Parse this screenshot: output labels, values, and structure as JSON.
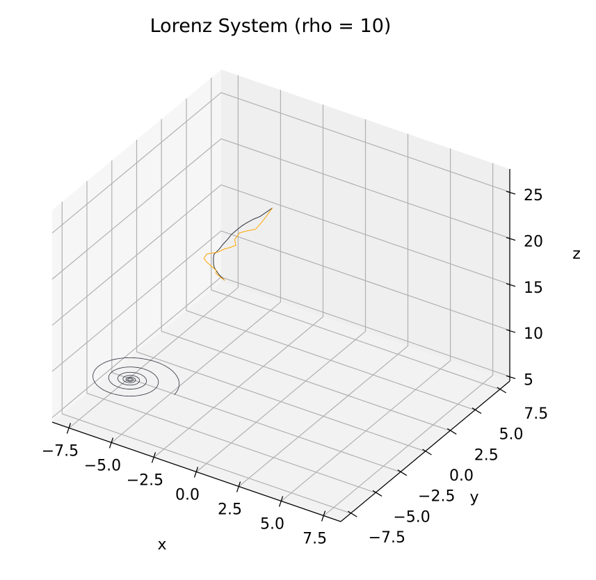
{
  "chart_data": {
    "type": "line",
    "title": "Lorenz System (rho = 10)",
    "xlabel": "x",
    "ylabel": "y",
    "zlabel": "z",
    "xlim": [
      -8.5,
      8.5
    ],
    "ylim": [
      -8.5,
      8.5
    ],
    "zlim": [
      4.5,
      27.5
    ],
    "xticks": [
      -7.5,
      -5.0,
      -2.5,
      0.0,
      2.5,
      5.0,
      7.5
    ],
    "xtick_labels": [
      "−7.5",
      "−5.0",
      "−2.5",
      "0.0",
      "2.5",
      "5.0",
      "7.5"
    ],
    "yticks": [
      -7.5,
      -5.0,
      -2.5,
      0.0,
      2.5,
      5.0,
      7.5
    ],
    "ytick_labels": [
      "−7.5",
      "−5.0",
      "−2.5",
      "0.0",
      "2.5",
      "5.0",
      "7.5"
    ],
    "zticks": [
      5,
      10,
      15,
      20,
      25
    ],
    "ztick_labels": [
      "5",
      "10",
      "15",
      "20",
      "25"
    ],
    "grid": true,
    "colors": {
      "pane": "#f2f2f2",
      "grid": "#b0b0b0",
      "series_dark": "#2b2f3a",
      "series_orange": "#ffa500"
    },
    "series": [
      {
        "color": "#2b2f3a",
        "points": [
          [
            -8.0,
            8.0,
            5.4
          ],
          [
            -8.0,
            7.4,
            6.6
          ],
          [
            -7.9,
            6.8,
            7.9
          ],
          [
            -7.6,
            6.2,
            9.0
          ],
          [
            -7.2,
            5.5,
            10.5
          ],
          [
            -6.7,
            4.7,
            12.0
          ],
          [
            -6.0,
            4.0,
            13.6
          ],
          [
            -5.4,
            3.4,
            15.1
          ],
          [
            -4.8,
            2.8,
            16.5
          ],
          [
            -4.2,
            2.2,
            18.0
          ],
          [
            -3.6,
            1.6,
            19.3
          ],
          [
            -3.0,
            1.1,
            20.6
          ],
          [
            -2.4,
            0.6,
            21.8
          ],
          [
            -1.7,
            0.1,
            23.1
          ],
          [
            -1.0,
            -0.4,
            24.3
          ],
          [
            -0.4,
            -0.8,
            25.5
          ],
          [
            0.2,
            -1.2,
            26.7
          ]
        ],
        "spiral": {
          "center": [
            -6.6,
            -3.9,
            6.2
          ],
          "r0": 2.6,
          "turns": 6,
          "decay": 0.55
        }
      },
      {
        "color": "#ffa500",
        "points": [
          [
            -8.0,
            8.0,
            5.4
          ],
          [
            -8.1,
            7.3,
            6.7
          ],
          [
            -7.8,
            6.8,
            7.7
          ],
          [
            -8.0,
            6.2,
            9.0
          ],
          [
            -7.7,
            5.4,
            10.3
          ],
          [
            -7.3,
            5.0,
            11.4
          ],
          [
            -6.5,
            4.8,
            12.3
          ],
          [
            -5.7,
            4.1,
            13.8
          ],
          [
            -5.0,
            3.2,
            15.1
          ],
          [
            -4.3,
            2.8,
            16.2
          ],
          [
            -3.9,
            2.0,
            17.8
          ],
          [
            -3.2,
            1.3,
            19.6
          ],
          [
            -2.5,
            0.8,
            20.7
          ],
          [
            -1.8,
            0.5,
            21.6
          ],
          [
            -1.2,
            -0.1,
            23.0
          ],
          [
            -0.5,
            -0.7,
            24.8
          ],
          [
            0.2,
            -1.2,
            26.7
          ]
        ]
      }
    ]
  }
}
